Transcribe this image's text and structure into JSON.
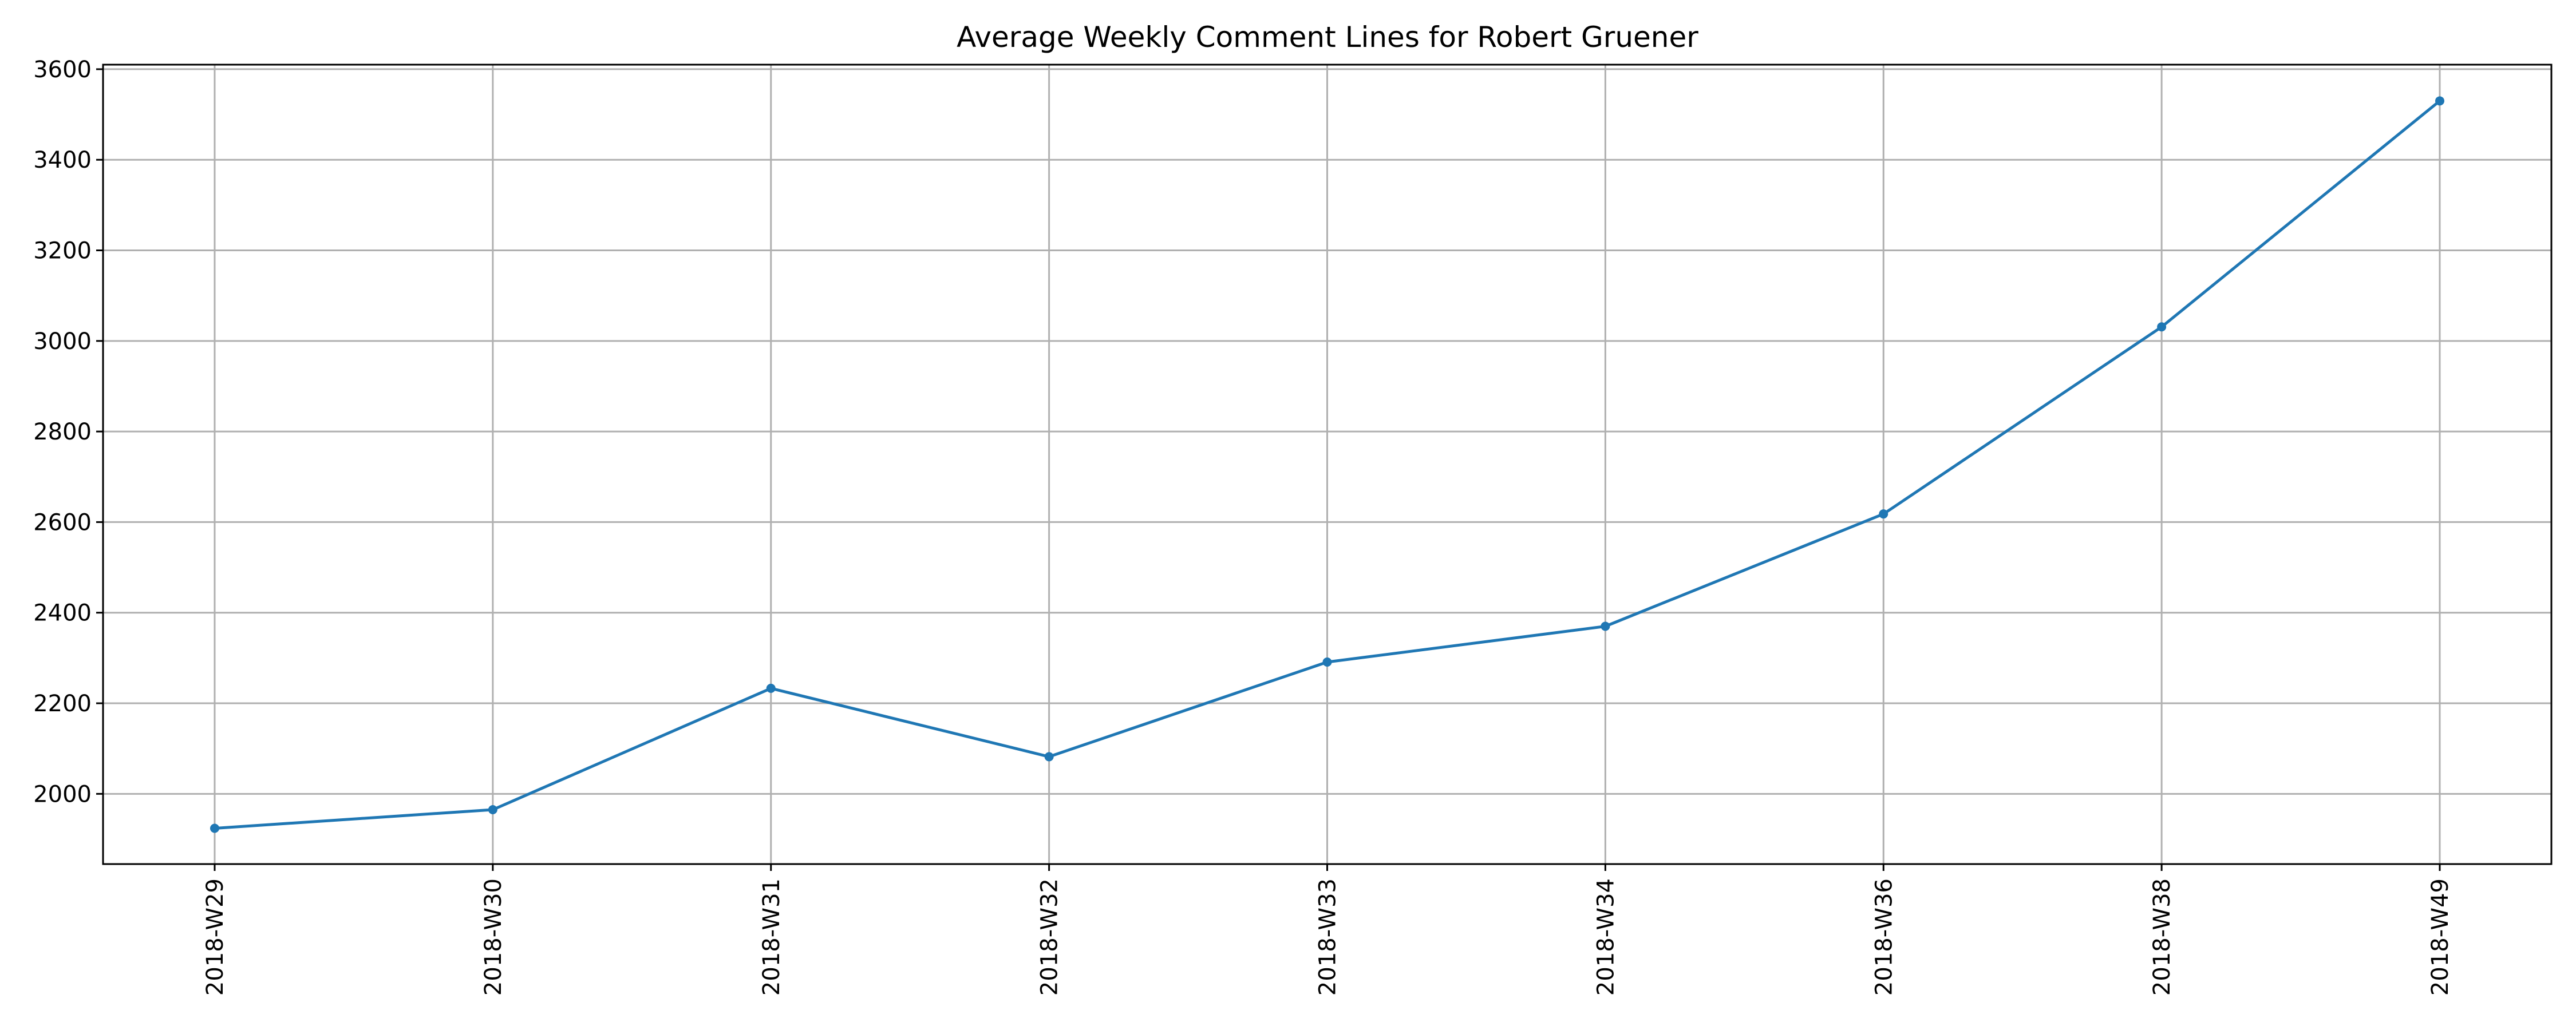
{
  "chart_data": {
    "type": "line",
    "title": "Average Weekly Comment Lines for Robert Gruener",
    "xlabel": "",
    "ylabel": "",
    "categories": [
      "2018-W29",
      "2018-W30",
      "2018-W31",
      "2018-W32",
      "2018-W33",
      "2018-W34",
      "2018-W36",
      "2018-W38",
      "2018-W49"
    ],
    "series": [
      {
        "values": [
          1924,
          1965,
          2233,
          2082,
          2291,
          2370,
          2618,
          3031,
          3530
        ]
      }
    ],
    "ylim": [
      1845,
      3610
    ],
    "yticks": [
      2000,
      2200,
      2400,
      2600,
      2800,
      3000,
      3200,
      3400,
      3600
    ],
    "grid": true,
    "legend": "none",
    "colors": {
      "line": "#1f77b4",
      "grid": "#b0b0b0",
      "axes": "#000000"
    }
  }
}
